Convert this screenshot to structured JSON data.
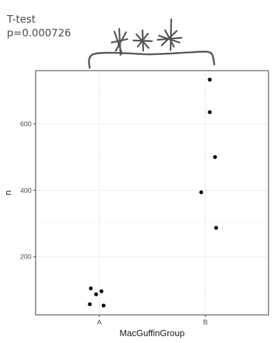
{
  "test_label": {
    "line1": "T-test",
    "line2": "p=0.000726"
  },
  "significance": {
    "marker": "***",
    "bracket": "curly-brace"
  },
  "chart_data": {
    "type": "scatter",
    "xlabel": "MacGuffinGroup",
    "ylabel": "n",
    "categories": [
      "A",
      "B"
    ],
    "y_ticks": [
      200,
      400,
      600
    ],
    "ylim": [
      25,
      760
    ],
    "grid": true,
    "points": [
      {
        "x": "A",
        "jitter": -0.08,
        "y": 105
      },
      {
        "x": "A",
        "jitter": -0.03,
        "y": 87
      },
      {
        "x": "A",
        "jitter": 0.02,
        "y": 96
      },
      {
        "x": "A",
        "jitter": -0.09,
        "y": 57
      },
      {
        "x": "A",
        "jitter": 0.04,
        "y": 53
      },
      {
        "x": "B",
        "jitter": 0.04,
        "y": 733
      },
      {
        "x": "B",
        "jitter": 0.04,
        "y": 635
      },
      {
        "x": "B",
        "jitter": 0.09,
        "y": 500
      },
      {
        "x": "B",
        "jitter": -0.04,
        "y": 394
      },
      {
        "x": "B",
        "jitter": 0.1,
        "y": 287
      }
    ],
    "colors": {
      "point": "#000000",
      "grid_major": "#ebebeb",
      "grid_minor": "#f5f5f5",
      "panel_border": "#333333",
      "annotation": "#555555"
    }
  }
}
